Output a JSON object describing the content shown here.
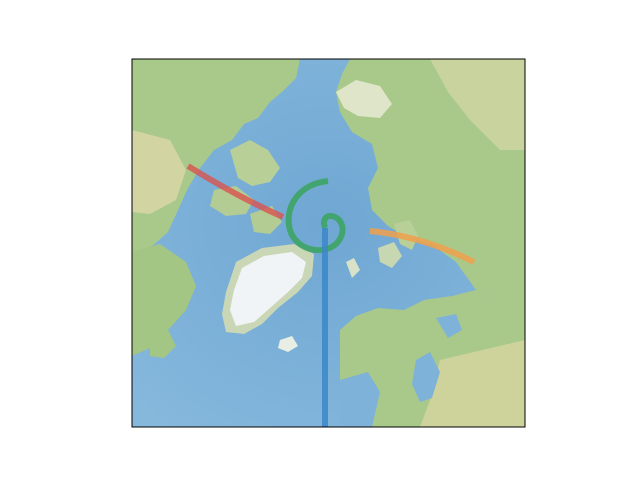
{
  "map": {
    "projection": "north-polar-stereographic",
    "background": "stock-image",
    "colors": {
      "ocean": "#7fb2d8",
      "ocean_deep": "#6aa3cf",
      "land_green": "#a9c98a",
      "land_tan": "#dcd7a8",
      "ice": "#f1f4f6",
      "frame": "#000000"
    }
  },
  "tracks": [
    {
      "name": "red-track",
      "color": "#d9534f"
    },
    {
      "name": "orange-track",
      "color": "#f0a04b"
    },
    {
      "name": "green-spiral",
      "color": "#3aa55d"
    },
    {
      "name": "blue-track",
      "color": "#3b87c9"
    }
  ]
}
